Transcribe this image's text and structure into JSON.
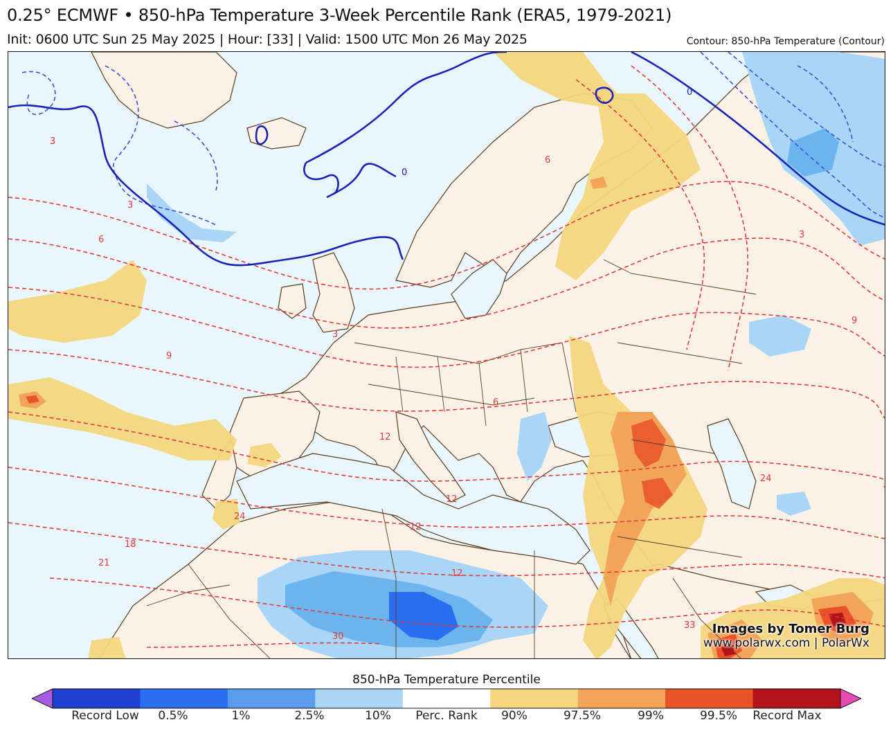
{
  "header": {
    "title": "0.25° ECMWF • 850-hPa Temperature 3-Week Percentile Rank (ERA5, 1979-2021)",
    "subtitle": "Init: 0600 UTC Sun 25 May 2025 | Hour: [33] | Valid: 1500 UTC Mon 26 May 2025",
    "contour_note": "Contour: 850-hPa Temperature (Contour)"
  },
  "map": {
    "region": "Europe / North Africa / Middle East",
    "contour_labels": [
      "3",
      "3",
      "3",
      "3",
      "6",
      "6",
      "6",
      "9",
      "9",
      "12",
      "12",
      "12",
      "12",
      "18",
      "21",
      "24",
      "24",
      "30",
      "33",
      "0",
      "0"
    ],
    "colors": {
      "ocean": "#e9f6fb",
      "land": "#fbf2e7",
      "p90": "#f3d67f",
      "p97": "#f2a45a",
      "p99": "#e85a2a",
      "p995": "#c0161a",
      "low10": "#a9d8f7",
      "low25": "#6cb4ee",
      "low1": "#3d84e8",
      "contour_warm": "#e23a3a",
      "contour_cold": "#3a4fd6",
      "zero_line": "#1a22b8",
      "borders": "#5a3a1c"
    }
  },
  "credits": {
    "line1": "Images by Tomer Burg",
    "line2": "www.polarwx.com | PolarWx"
  },
  "legend": {
    "title": "850-hPa Temperature Percentile",
    "colors": [
      "#a95ce0",
      "#1f3fd1",
      "#2a6ff0",
      "#5a9cec",
      "#a9d6f6",
      "#ffffff",
      "#f3d67f",
      "#f2a45a",
      "#e9532a",
      "#b3131b",
      "#e64ab5"
    ],
    "labels": [
      "Record Low",
      "0.5%",
      "1%",
      "2.5%",
      "10%",
      "Perc. Rank",
      "90%",
      "97.5%",
      "99%",
      "99.5%",
      "Record Max"
    ]
  }
}
